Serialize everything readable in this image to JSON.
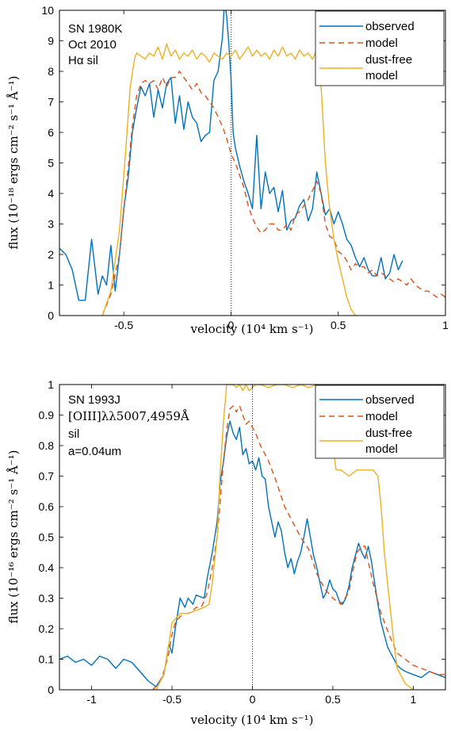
{
  "chart_data": [
    {
      "type": "line",
      "annotation": [
        "SN 1980K",
        "Oct 2010",
        "Hα sil"
      ],
      "xlabel": "velocity (10⁴ km s⁻¹)",
      "ylabel": "flux (10⁻¹⁸ ergs cm⁻² s⁻¹ Å⁻¹)",
      "xlim": [
        -0.8,
        1.0
      ],
      "ylim": [
        0,
        10
      ],
      "xticks": [
        -0.5,
        0,
        0.5,
        1
      ],
      "xtick_labels": [
        "-0.5",
        "0",
        "0.5",
        "1"
      ],
      "yticks": [
        0,
        1,
        2,
        3,
        4,
        5,
        6,
        7,
        8,
        9,
        10
      ],
      "ytick_labels": [
        "0",
        "1",
        "2",
        "3",
        "4",
        "5",
        "6",
        "7",
        "8",
        "9",
        "10"
      ],
      "grid": false,
      "legend_position": "top-right",
      "legend_entries": [
        "observed",
        "model",
        "dust-free",
        "model"
      ],
      "vline_x": 0,
      "series": [
        {
          "name": "observed",
          "color": "#0072BD",
          "dash": "solid",
          "x": [
            -0.8,
            -0.77,
            -0.74,
            -0.71,
            -0.68,
            -0.65,
            -0.62,
            -0.6,
            -0.58,
            -0.56,
            -0.54,
            -0.52,
            -0.5,
            -0.48,
            -0.46,
            -0.44,
            -0.42,
            -0.4,
            -0.38,
            -0.36,
            -0.34,
            -0.32,
            -0.3,
            -0.28,
            -0.26,
            -0.24,
            -0.22,
            -0.2,
            -0.18,
            -0.16,
            -0.14,
            -0.12,
            -0.1,
            -0.08,
            -0.06,
            -0.04,
            -0.03,
            -0.02,
            -0.01,
            0.0,
            0.01,
            0.02,
            0.04,
            0.06,
            0.08,
            0.1,
            0.12,
            0.14,
            0.16,
            0.18,
            0.2,
            0.22,
            0.24,
            0.26,
            0.28,
            0.3,
            0.32,
            0.34,
            0.36,
            0.38,
            0.4,
            0.42,
            0.44,
            0.46,
            0.48,
            0.5,
            0.52,
            0.54,
            0.56,
            0.58,
            0.6,
            0.62,
            0.64,
            0.66,
            0.68,
            0.7,
            0.72,
            0.74,
            0.76,
            0.78,
            0.8
          ],
          "y": [
            2.2,
            2.0,
            1.5,
            0.5,
            0.5,
            2.5,
            0.7,
            1.3,
            1.0,
            2.3,
            0.8,
            2.0,
            3.5,
            4.5,
            6.0,
            6.8,
            7.5,
            7.2,
            7.6,
            6.5,
            7.4,
            6.8,
            7.6,
            7.8,
            6.3,
            7.2,
            6.1,
            7.0,
            6.5,
            6.3,
            5.7,
            5.9,
            6.0,
            7.7,
            8.0,
            9.1,
            10.3,
            9.8,
            8.9,
            7.8,
            6.0,
            5.5,
            4.9,
            4.4,
            4.0,
            3.5,
            5.9,
            3.5,
            4.7,
            4.0,
            4.2,
            3.4,
            4.1,
            2.8,
            3.1,
            3.2,
            3.6,
            3.8,
            3.1,
            3.5,
            4.7,
            4.0,
            3.3,
            3.5,
            3.0,
            3.4,
            3.0,
            2.5,
            2.3,
            1.9,
            1.6,
            1.9,
            1.5,
            1.3,
            1.3,
            1.9,
            1.2,
            1.4,
            2.0,
            1.5,
            1.8
          ]
        },
        {
          "name": "model",
          "color": "#D95319",
          "dash": "dashed",
          "x": [
            -0.6,
            -0.56,
            -0.52,
            -0.5,
            -0.48,
            -0.46,
            -0.44,
            -0.42,
            -0.4,
            -0.38,
            -0.36,
            -0.34,
            -0.32,
            -0.3,
            -0.28,
            -0.26,
            -0.24,
            -0.22,
            -0.2,
            -0.18,
            -0.16,
            -0.14,
            -0.12,
            -0.1,
            -0.08,
            -0.06,
            -0.04,
            -0.02,
            0.0,
            0.02,
            0.04,
            0.06,
            0.08,
            0.1,
            0.12,
            0.14,
            0.16,
            0.18,
            0.2,
            0.22,
            0.24,
            0.26,
            0.28,
            0.3,
            0.32,
            0.34,
            0.36,
            0.38,
            0.4,
            0.42,
            0.44,
            0.46,
            0.48,
            0.5,
            0.52,
            0.54,
            0.56,
            0.58,
            0.6,
            0.62,
            0.64,
            0.66,
            0.68,
            0.7,
            0.72,
            0.74,
            0.76,
            0.78,
            0.8,
            0.82,
            0.84,
            0.86,
            0.88,
            0.9,
            0.92,
            0.94,
            0.96,
            0.98,
            1.0
          ],
          "y": [
            0.0,
            0.7,
            2.0,
            3.5,
            4.8,
            6.2,
            7.2,
            7.6,
            7.7,
            7.6,
            7.7,
            7.4,
            7.8,
            7.5,
            7.8,
            7.8,
            8.0,
            7.8,
            7.6,
            7.4,
            7.6,
            7.3,
            7.2,
            7.0,
            6.8,
            6.5,
            6.2,
            5.8,
            5.3,
            5.0,
            4.6,
            4.2,
            3.6,
            3.2,
            2.9,
            2.7,
            2.8,
            3.0,
            3.0,
            2.8,
            2.8,
            3.0,
            2.8,
            3.3,
            3.4,
            3.6,
            3.8,
            4.1,
            4.4,
            4.0,
            3.0,
            2.6,
            2.5,
            2.1,
            2.0,
            1.8,
            1.5,
            1.7,
            1.6,
            1.6,
            1.4,
            1.5,
            1.3,
            1.4,
            1.3,
            1.2,
            1.1,
            1.2,
            1.1,
            1.0,
            1.2,
            1.0,
            0.9,
            0.8,
            0.8,
            0.7,
            0.6,
            0.7,
            0.6
          ]
        },
        {
          "name": "dust-free model",
          "color": "#EDB120",
          "dash": "solid",
          "x": [
            -0.6,
            -0.56,
            -0.52,
            -0.49,
            -0.47,
            -0.45,
            -0.44,
            -0.42,
            -0.4,
            -0.38,
            -0.36,
            -0.34,
            -0.32,
            -0.3,
            -0.28,
            -0.26,
            -0.24,
            -0.22,
            -0.2,
            -0.18,
            -0.16,
            -0.14,
            -0.12,
            -0.1,
            -0.08,
            -0.06,
            -0.04,
            -0.02,
            0.0,
            0.02,
            0.04,
            0.06,
            0.08,
            0.1,
            0.12,
            0.14,
            0.16,
            0.18,
            0.2,
            0.22,
            0.24,
            0.26,
            0.28,
            0.3,
            0.32,
            0.34,
            0.36,
            0.38,
            0.4,
            0.42,
            0.44,
            0.46,
            0.48,
            0.5,
            0.52,
            0.54,
            0.56,
            0.58
          ],
          "y": [
            0.0,
            0.8,
            2.8,
            5.5,
            7.5,
            8.4,
            8.6,
            8.5,
            8.4,
            8.6,
            8.5,
            8.8,
            8.4,
            8.9,
            8.5,
            8.7,
            8.4,
            8.6,
            8.5,
            8.7,
            8.4,
            8.6,
            8.5,
            8.3,
            8.6,
            8.5,
            8.4,
            8.6,
            8.5,
            8.7,
            8.4,
            8.6,
            8.8,
            8.5,
            8.7,
            8.5,
            8.6,
            8.4,
            8.7,
            8.5,
            8.8,
            8.5,
            8.6,
            8.4,
            8.7,
            8.5,
            8.6,
            8.4,
            8.7,
            7.5,
            5.0,
            3.5,
            2.5,
            1.8,
            1.2,
            0.6,
            0.2,
            0.0
          ]
        }
      ]
    },
    {
      "type": "line",
      "annotation": [
        "SN 1993J",
        "[OIII]λλ5007,4959Å",
        "sil",
        "a=0.04um"
      ],
      "xlabel": "velocity (10⁴ km s⁻¹)",
      "ylabel": "flux (10⁻¹⁶ ergs cm⁻² s⁻¹ Å⁻¹)",
      "xlim": [
        -1.2,
        1.2
      ],
      "ylim": [
        0,
        1
      ],
      "xticks": [
        -1,
        -0.5,
        0,
        0.5,
        1
      ],
      "xtick_labels": [
        "-1",
        "-0.5",
        "0",
        "0.5",
        "1"
      ],
      "yticks": [
        0,
        0.1,
        0.2,
        0.3,
        0.4,
        0.5,
        0.6,
        0.7,
        0.8,
        0.9,
        1
      ],
      "ytick_labels": [
        "0",
        "0.1",
        "0.2",
        "0.3",
        "0.4",
        "0.5",
        "0.6",
        "0.7",
        "0.8",
        "0.9",
        "1"
      ],
      "grid": false,
      "legend_position": "top-right",
      "legend_entries": [
        "observed",
        "model",
        "dust-free",
        "model"
      ],
      "vline_x": 0,
      "series": [
        {
          "name": "observed",
          "color": "#0072BD",
          "dash": "solid",
          "x": [
            -1.2,
            -1.15,
            -1.1,
            -1.05,
            -1.0,
            -0.95,
            -0.9,
            -0.85,
            -0.8,
            -0.75,
            -0.7,
            -0.65,
            -0.6,
            -0.55,
            -0.52,
            -0.5,
            -0.48,
            -0.45,
            -0.42,
            -0.4,
            -0.37,
            -0.35,
            -0.3,
            -0.28,
            -0.25,
            -0.22,
            -0.2,
            -0.18,
            -0.16,
            -0.14,
            -0.12,
            -0.1,
            -0.08,
            -0.06,
            -0.04,
            -0.02,
            0.0,
            0.02,
            0.04,
            0.06,
            0.08,
            0.1,
            0.12,
            0.14,
            0.16,
            0.18,
            0.2,
            0.22,
            0.24,
            0.26,
            0.28,
            0.3,
            0.32,
            0.34,
            0.36,
            0.38,
            0.4,
            0.42,
            0.44,
            0.46,
            0.48,
            0.5,
            0.52,
            0.54,
            0.56,
            0.58,
            0.6,
            0.62,
            0.64,
            0.66,
            0.68,
            0.7,
            0.72,
            0.74,
            0.76,
            0.78,
            0.8,
            0.82,
            0.84,
            0.86,
            0.88,
            0.9,
            0.92,
            0.95,
            1.0,
            1.05,
            1.1,
            1.15,
            1.2
          ],
          "y": [
            0.1,
            0.11,
            0.09,
            0.1,
            0.08,
            0.11,
            0.1,
            0.07,
            0.1,
            0.09,
            0.06,
            0.03,
            0.01,
            0.05,
            0.15,
            0.12,
            0.2,
            0.3,
            0.27,
            0.3,
            0.28,
            0.31,
            0.3,
            0.37,
            0.45,
            0.55,
            0.68,
            0.75,
            0.83,
            0.88,
            0.84,
            0.82,
            0.86,
            0.77,
            0.79,
            0.74,
            0.75,
            0.72,
            0.76,
            0.7,
            0.69,
            0.6,
            0.55,
            0.5,
            0.55,
            0.52,
            0.45,
            0.4,
            0.43,
            0.38,
            0.42,
            0.45,
            0.5,
            0.56,
            0.5,
            0.44,
            0.4,
            0.35,
            0.3,
            0.32,
            0.36,
            0.33,
            0.32,
            0.29,
            0.28,
            0.3,
            0.34,
            0.4,
            0.44,
            0.48,
            0.45,
            0.43,
            0.47,
            0.42,
            0.35,
            0.28,
            0.22,
            0.18,
            0.14,
            0.12,
            0.1,
            0.08,
            0.07,
            0.06,
            0.05,
            0.04,
            0.06,
            0.05,
            0.04
          ]
        },
        {
          "name": "model",
          "color": "#D95319",
          "dash": "dashed",
          "x": [
            -0.62,
            -0.58,
            -0.55,
            -0.52,
            -0.5,
            -0.48,
            -0.45,
            -0.42,
            -0.4,
            -0.37,
            -0.35,
            -0.32,
            -0.3,
            -0.28,
            -0.25,
            -0.22,
            -0.2,
            -0.18,
            -0.16,
            -0.14,
            -0.12,
            -0.1,
            -0.08,
            -0.06,
            -0.04,
            -0.02,
            0.0,
            0.02,
            0.05,
            0.1,
            0.15,
            0.2,
            0.25,
            0.3,
            0.35,
            0.4,
            0.45,
            0.5,
            0.55,
            0.6,
            0.62,
            0.65,
            0.68,
            0.7,
            0.72,
            0.75,
            0.8,
            0.85,
            0.9,
            0.95,
            1.0,
            1.05,
            1.1,
            1.15,
            1.2
          ],
          "y": [
            0.0,
            0.02,
            0.06,
            0.12,
            0.18,
            0.22,
            0.24,
            0.25,
            0.25,
            0.26,
            0.27,
            0.27,
            0.29,
            0.32,
            0.4,
            0.5,
            0.62,
            0.75,
            0.85,
            0.92,
            0.93,
            0.91,
            0.93,
            0.9,
            0.87,
            0.88,
            0.86,
            0.84,
            0.8,
            0.75,
            0.68,
            0.6,
            0.55,
            0.5,
            0.46,
            0.38,
            0.33,
            0.3,
            0.28,
            0.32,
            0.38,
            0.45,
            0.47,
            0.47,
            0.42,
            0.35,
            0.25,
            0.18,
            0.12,
            0.1,
            0.08,
            0.07,
            0.06,
            0.05,
            0.05
          ]
        },
        {
          "name": "dust-free model",
          "color": "#EDB120",
          "dash": "solid",
          "x": [
            -0.6,
            -0.55,
            -0.52,
            -0.5,
            -0.45,
            -0.4,
            -0.35,
            -0.3,
            -0.27,
            -0.25,
            -0.22,
            -0.2,
            -0.18,
            -0.16,
            -0.14,
            -0.12,
            -0.1,
            -0.08,
            -0.06,
            -0.04,
            -0.02,
            0.0,
            0.02,
            0.05,
            0.1,
            0.15,
            0.2,
            0.25,
            0.3,
            0.35,
            0.4,
            0.45,
            0.48,
            0.5,
            0.52,
            0.55,
            0.6,
            0.65,
            0.7,
            0.75,
            0.78,
            0.8,
            0.82,
            0.85,
            0.88,
            0.9,
            0.95,
            1.0
          ],
          "y": [
            0.0,
            0.05,
            0.15,
            0.22,
            0.25,
            0.25,
            0.26,
            0.27,
            0.28,
            0.35,
            0.5,
            0.72,
            0.88,
            1.0,
            1.0,
            1.0,
            0.99,
            1.0,
            0.98,
            1.0,
            0.98,
            0.99,
            1.0,
            1.0,
            0.99,
            1.0,
            1.0,
            0.99,
            1.0,
            0.99,
            1.0,
            1.0,
            0.95,
            0.8,
            0.72,
            0.72,
            0.7,
            0.72,
            0.72,
            0.72,
            0.7,
            0.6,
            0.45,
            0.3,
            0.15,
            0.07,
            0.02,
            0.0
          ]
        }
      ]
    }
  ]
}
